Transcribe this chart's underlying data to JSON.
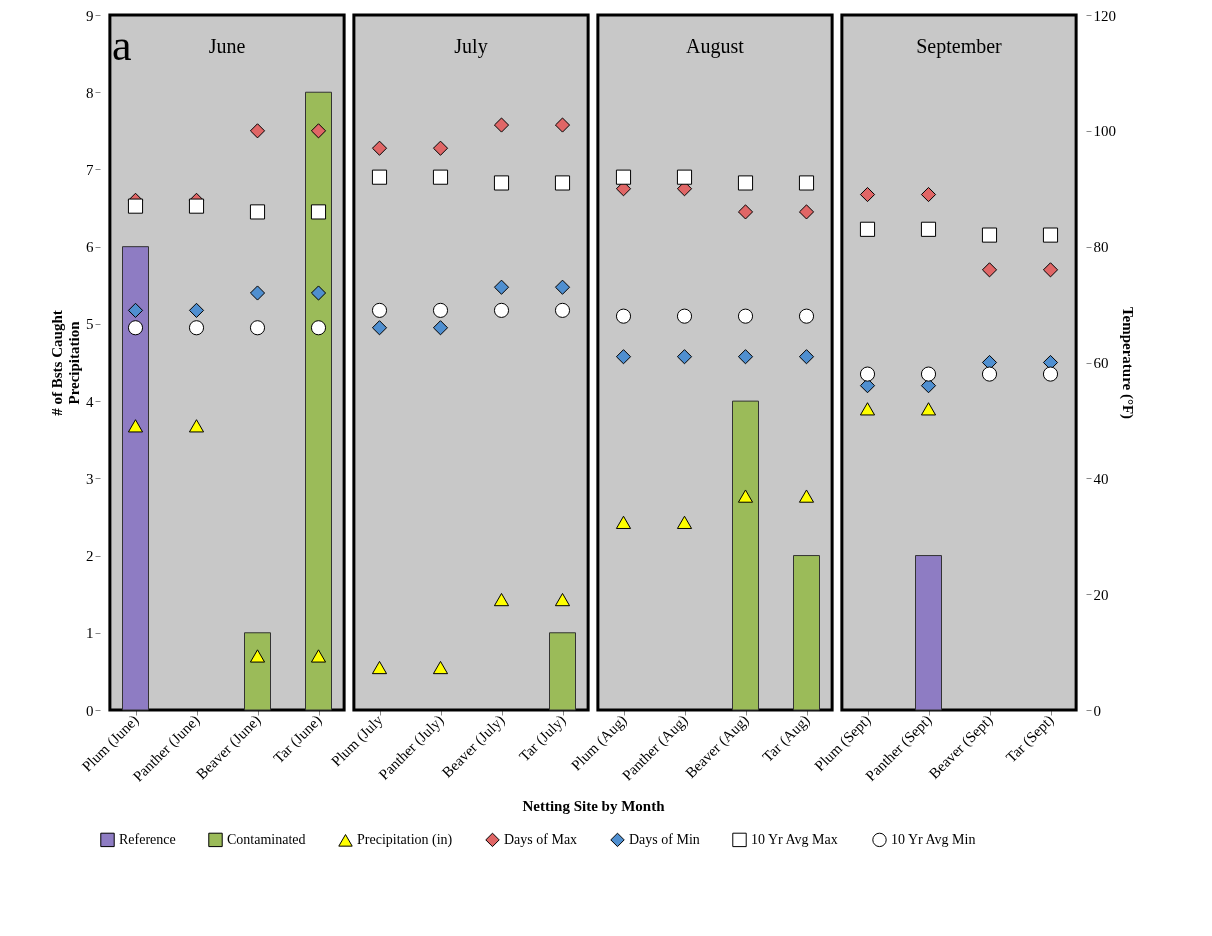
{
  "chart_data": {
    "type": "bar",
    "xlabel": "Netting Site by Month",
    "ylabel": "# of Bsts Caught\nPrecipitation",
    "y2label": "Temperature (°F)",
    "categories": [
      "Plum (June)",
      "Panther (June)",
      "Beaver (June)",
      "Tar (June)",
      "Plum (July",
      "Panther (July)",
      "Beaver (July)",
      "Tar (July)",
      "Plum (Aug)",
      "Panther (Aug)",
      "Beaver (Aug)",
      "Tar (Aug)",
      "Plum (Sept)",
      "Panther (Sept)",
      "Beaver (Sept)",
      "Tar (Sept)"
    ],
    "series": [
      {
        "name": "Reference",
        "type": "bar",
        "color": "#8e7cc3",
        "values": [
          6,
          null,
          null,
          null,
          null,
          null,
          null,
          null,
          null,
          null,
          null,
          null,
          null,
          2,
          null,
          null
        ]
      },
      {
        "name": "Contaminated",
        "type": "bar",
        "color": "#9bbb59",
        "values": [
          null,
          null,
          1,
          8,
          null,
          null,
          null,
          1,
          null,
          null,
          4,
          2,
          null,
          null,
          null,
          null
        ]
      },
      {
        "name": "Precipitation (in)",
        "type": "scatter",
        "marker": "triangle",
        "color": "#ffff00",
        "values": [
          3.68,
          3.68,
          0.7,
          0.7,
          0.55,
          0.55,
          1.43,
          1.43,
          2.43,
          2.43,
          2.77,
          2.77,
          3.9,
          3.9,
          null,
          null
        ]
      },
      {
        "name": "Days of Max",
        "type": "scatter",
        "marker": "diamond",
        "axis": "y2",
        "color": "#e06666",
        "values": [
          88,
          88,
          100,
          100,
          97,
          97,
          101,
          101,
          90,
          90,
          86,
          86,
          89,
          89,
          76,
          76
        ]
      },
      {
        "name": "Days of Min",
        "type": "scatter",
        "marker": "diamond",
        "axis": "y2",
        "color": "#4f8fd0",
        "values": [
          69,
          69,
          72,
          72,
          66,
          66,
          73,
          73,
          61,
          61,
          61,
          61,
          56,
          56,
          60,
          60
        ]
      },
      {
        "name": "10 Yr Avg Max",
        "type": "scatter",
        "marker": "square",
        "axis": "y2",
        "color": "#ffffff",
        "values": [
          87,
          87,
          86,
          86,
          92,
          92,
          91,
          91,
          92,
          92,
          91,
          91,
          83,
          83,
          82,
          82
        ]
      },
      {
        "name": "10 Yr Avg Min",
        "type": "scatter",
        "marker": "circle",
        "axis": "y2",
        "color": "#ffffff",
        "values": [
          66,
          66,
          66,
          66,
          69,
          69,
          69,
          69,
          68,
          68,
          68,
          68,
          58,
          58,
          58,
          58
        ]
      }
    ],
    "ylim": [
      0,
      9
    ],
    "yticks": [
      0,
      1,
      2,
      3,
      4,
      5,
      6,
      7,
      8,
      9
    ],
    "y2lim": [
      0,
      120
    ],
    "y2ticks": [
      0,
      20,
      40,
      60,
      80,
      100,
      120
    ],
    "bands": [
      {
        "axis": "x",
        "from": "Plum (June)",
        "to": "Tar (June)",
        "label": "June",
        "color": "#c8c8c8"
      },
      {
        "axis": "x",
        "from": "Plum (July",
        "to": "Tar (July)",
        "label": "July",
        "color": "#c8c8c8"
      },
      {
        "axis": "x",
        "from": "Plum (Aug)",
        "to": "Tar (Aug)",
        "label": "August",
        "color": "#c8c8c8"
      },
      {
        "axis": "x",
        "from": "Plum (Sept)",
        "to": "Tar (Sept)",
        "label": "September",
        "color": "#c8c8c8"
      }
    ],
    "annotations": [
      "a"
    ],
    "grid": false,
    "legend": "bottom"
  }
}
